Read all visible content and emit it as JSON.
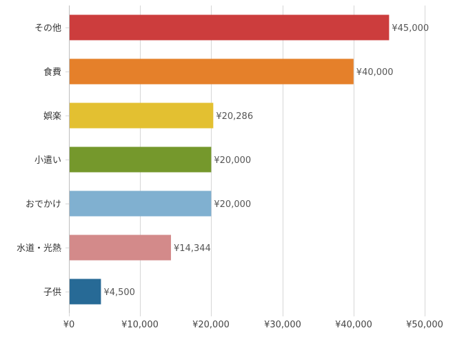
{
  "chart_data": {
    "type": "bar",
    "orientation": "horizontal",
    "title": "",
    "xlabel": "",
    "ylabel": "",
    "xlim": [
      0,
      50000
    ],
    "ticks": [
      0,
      10000,
      20000,
      30000,
      40000,
      50000
    ],
    "tick_labels": [
      "¥0",
      "¥10,000",
      "¥20,000",
      "¥30,000",
      "¥40,000",
      "¥50,000"
    ],
    "grid": true,
    "legend": "none",
    "categories": [
      "その他",
      "食費",
      "娯楽",
      "小遣い",
      "おでかけ",
      "水道・光熱",
      "子供"
    ],
    "values": [
      45000,
      40000,
      20286,
      20000,
      20000,
      14344,
      4500
    ],
    "value_labels": [
      "¥45,000",
      "¥40,000",
      "¥20,286",
      "¥20,000",
      "¥20,000",
      "¥14,344",
      "¥4,500"
    ],
    "colors": [
      "#cc3d3d",
      "#e5802a",
      "#e3c031",
      "#75982c",
      "#80b0d0",
      "#d38a8a",
      "#276a96"
    ]
  }
}
